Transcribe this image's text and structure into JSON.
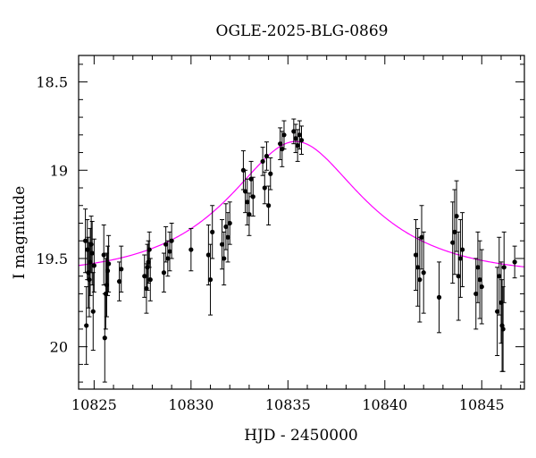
{
  "chart_data": {
    "type": "scatter",
    "title": "OGLE-2025-BLG-0869",
    "xlabel": "HJD - 2450000",
    "ylabel": "I magnitude",
    "xlim": [
      10824.2,
      10847.2
    ],
    "ylim": [
      20.24,
      18.35
    ],
    "y_inverted": true,
    "x_ticks": [
      10825,
      10830,
      10835,
      10840,
      10845
    ],
    "y_ticks": [
      18.5,
      19,
      19.5,
      20
    ],
    "y_tick_labels": [
      "18.5",
      "19",
      "19.5",
      "20"
    ],
    "model_color": "#ff00ff",
    "point_color": "#000000",
    "model": {
      "curve": "microlensing-paczynski",
      "t0": 10835.4,
      "tE": 5.7,
      "u0": 0.55,
      "baseline_mag": 19.6
    },
    "series": [
      {
        "x": [
          10824.55,
          10824.6,
          10824.65,
          10824.7,
          10824.75,
          10824.8,
          10824.85,
          10824.9,
          10824.95,
          10825.0,
          10825.5,
          10825.55,
          10825.6,
          10825.65,
          10825.7,
          10825.75,
          10826.3,
          10826.4,
          10827.6,
          10827.7,
          10827.75,
          10827.8,
          10827.85,
          10827.9,
          10828.6,
          10828.7,
          10828.8,
          10828.9,
          10829.0,
          10830.0,
          10830.9,
          10831.0,
          10831.1,
          10831.6,
          10831.7,
          10831.8,
          10831.9,
          10832.0,
          10832.7,
          10832.8,
          10832.9,
          10833.0,
          10833.1,
          10833.2,
          10833.7,
          10833.8,
          10833.9,
          10834.0,
          10834.1,
          10834.6,
          10834.7,
          10834.8,
          10835.3,
          10835.4,
          10835.5,
          10835.6,
          10835.7,
          10841.6,
          10841.7,
          10841.8,
          10841.9,
          10842.0,
          10842.8,
          10843.5,
          10843.6,
          10843.7,
          10843.8,
          10843.9,
          10844.0,
          10844.7,
          10844.8,
          10844.9,
          10845.0,
          10845.8,
          10845.9,
          10846.0,
          10846.05,
          10846.1,
          10846.15,
          10846.7
        ],
        "y": [
          19.4,
          19.88,
          19.45,
          19.58,
          19.62,
          19.52,
          19.42,
          19.47,
          19.8,
          19.54,
          19.48,
          19.95,
          19.7,
          19.65,
          19.57,
          19.53,
          19.63,
          19.56,
          19.6,
          19.67,
          19.55,
          19.52,
          19.45,
          19.62,
          19.58,
          19.42,
          19.5,
          19.46,
          19.4,
          19.45,
          19.48,
          19.62,
          19.35,
          19.42,
          19.5,
          19.32,
          19.38,
          19.3,
          19.0,
          19.12,
          19.18,
          19.25,
          19.05,
          19.15,
          18.95,
          19.1,
          18.92,
          19.2,
          19.02,
          18.85,
          18.88,
          18.8,
          18.78,
          18.82,
          18.86,
          18.8,
          18.83,
          19.48,
          19.55,
          19.62,
          19.38,
          19.58,
          19.72,
          19.41,
          19.35,
          19.26,
          19.6,
          19.5,
          19.45,
          19.7,
          19.55,
          19.62,
          19.66,
          19.8,
          19.6,
          19.75,
          19.88,
          19.9,
          19.55,
          19.52
        ],
        "yerr": [
          0.18,
          0.22,
          0.17,
          0.2,
          0.21,
          0.19,
          0.16,
          0.18,
          0.22,
          0.15,
          0.17,
          0.25,
          0.2,
          0.18,
          0.14,
          0.16,
          0.11,
          0.13,
          0.12,
          0.14,
          0.13,
          0.12,
          0.1,
          0.12,
          0.11,
          0.1,
          0.1,
          0.11,
          0.1,
          0.12,
          0.17,
          0.2,
          0.15,
          0.14,
          0.15,
          0.13,
          0.14,
          0.12,
          0.11,
          0.12,
          0.13,
          0.12,
          0.1,
          0.11,
          0.08,
          0.09,
          0.08,
          0.11,
          0.09,
          0.09,
          0.1,
          0.08,
          0.07,
          0.08,
          0.09,
          0.08,
          0.08,
          0.2,
          0.22,
          0.24,
          0.18,
          0.23,
          0.2,
          0.23,
          0.24,
          0.2,
          0.25,
          0.22,
          0.21,
          0.2,
          0.2,
          0.22,
          0.21,
          0.25,
          0.22,
          0.23,
          0.26,
          0.24,
          0.2,
          0.09
        ]
      }
    ]
  }
}
